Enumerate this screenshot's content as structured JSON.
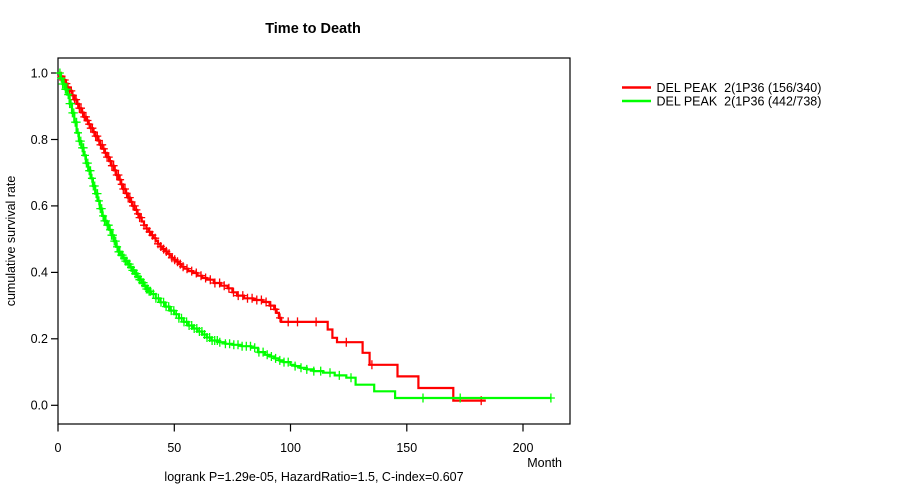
{
  "chart_data": {
    "type": "line",
    "subtype": "kaplan-meier-step-curves",
    "title": "Time to Death",
    "xlabel": "Month",
    "ylabel": "cumulative survival rate",
    "annotation": "logrank P=1.29e-05, HazardRatio=1.5, C-index=0.607",
    "background_color": "#FFFFFF",
    "axis_color": "#000000",
    "grid": false,
    "legend_position": "right-outside",
    "xlim": [
      0,
      220
    ],
    "ylim": [
      0.0,
      1.0
    ],
    "x_ticks": [
      0,
      50,
      100,
      150,
      200
    ],
    "y_tick_labels": [
      "0.0",
      "0.2",
      "0.4",
      "0.6",
      "0.8",
      "1.0"
    ],
    "series": [
      {
        "name": "DEL PEAK  2(1P36 (156/340)",
        "color": "#FF0000",
        "events": "156/340",
        "end": 184,
        "points": [
          [
            0,
            1
          ],
          [
            1,
            0.99
          ],
          [
            2,
            0.979
          ],
          [
            3,
            0.968
          ],
          [
            4,
            0.957
          ],
          [
            5,
            0.946
          ],
          [
            6,
            0.933
          ],
          [
            7,
            0.92
          ],
          [
            8,
            0.907
          ],
          [
            9,
            0.894
          ],
          [
            10,
            0.881
          ],
          [
            11,
            0.868
          ],
          [
            12,
            0.857
          ],
          [
            13,
            0.846
          ],
          [
            14,
            0.834
          ],
          [
            15,
            0.822
          ],
          [
            16,
            0.81
          ],
          [
            17,
            0.797
          ],
          [
            18,
            0.784
          ],
          [
            19,
            0.772
          ],
          [
            20,
            0.76
          ],
          [
            21,
            0.747
          ],
          [
            22,
            0.735
          ],
          [
            23,
            0.721
          ],
          [
            24,
            0.707
          ],
          [
            25,
            0.693
          ],
          [
            26,
            0.679
          ],
          [
            27,
            0.665
          ],
          [
            28,
            0.651
          ],
          [
            29,
            0.638
          ],
          [
            30,
            0.625
          ],
          [
            31,
            0.612
          ],
          [
            32,
            0.6
          ],
          [
            33,
            0.588
          ],
          [
            34,
            0.576
          ],
          [
            35,
            0.565
          ],
          [
            36,
            0.553
          ],
          [
            37,
            0.542
          ],
          [
            38,
            0.532
          ],
          [
            39,
            0.522
          ],
          [
            40,
            0.512
          ],
          [
            41,
            0.503
          ],
          [
            42,
            0.494
          ],
          [
            43,
            0.486
          ],
          [
            44,
            0.478
          ],
          [
            45,
            0.47
          ],
          [
            46,
            0.463
          ],
          [
            47,
            0.456
          ],
          [
            48,
            0.45
          ],
          [
            49,
            0.444
          ],
          [
            50,
            0.438
          ],
          [
            51,
            0.432
          ],
          [
            52,
            0.425
          ],
          [
            53,
            0.417
          ],
          [
            54,
            0.411
          ],
          [
            56,
            0.404
          ],
          [
            58,
            0.398
          ],
          [
            60,
            0.39
          ],
          [
            62,
            0.383
          ],
          [
            64,
            0.378
          ],
          [
            67,
            0.368
          ],
          [
            70,
            0.36
          ],
          [
            73,
            0.352
          ],
          [
            75,
            0.34
          ],
          [
            77,
            0.33
          ],
          [
            80,
            0.322
          ],
          [
            84,
            0.317
          ],
          [
            88,
            0.311
          ],
          [
            91,
            0.3
          ],
          [
            93,
            0.289
          ],
          [
            94,
            0.278
          ],
          [
            95,
            0.263
          ],
          [
            96,
            0.251
          ],
          [
            116,
            0.228
          ],
          [
            118,
            0.203
          ],
          [
            120,
            0.19
          ],
          [
            131,
            0.158
          ],
          [
            134,
            0.122
          ],
          [
            146,
            0.087
          ],
          [
            155,
            0.052
          ],
          [
            170,
            0.014
          ]
        ],
        "censors": {
          "ranges": [
            [
              1.5,
              36,
              0.7
            ],
            [
              37,
              54,
              1.2
            ],
            [
              55.5,
              95.5,
              2
            ]
          ],
          "times": [
            99,
            103,
            111,
            124,
            135,
            182
          ]
        }
      },
      {
        "name": "DEL PEAK  2(1P36 (442/738)",
        "color": "#00FF00",
        "events": "442/738",
        "end": 212,
        "points": [
          [
            0,
            1
          ],
          [
            1,
            0.984
          ],
          [
            2,
            0.967
          ],
          [
            3,
            0.951
          ],
          [
            4,
            0.935
          ],
          [
            5,
            0.908
          ],
          [
            6,
            0.88
          ],
          [
            7,
            0.852
          ],
          [
            8,
            0.82
          ],
          [
            9,
            0.795
          ],
          [
            10,
            0.775
          ],
          [
            11,
            0.752
          ],
          [
            12,
            0.729
          ],
          [
            13,
            0.706
          ],
          [
            14,
            0.683
          ],
          [
            15,
            0.66
          ],
          [
            16,
            0.637
          ],
          [
            17,
            0.615
          ],
          [
            18,
            0.592
          ],
          [
            19,
            0.57
          ],
          [
            20,
            0.555
          ],
          [
            21,
            0.542
          ],
          [
            22,
            0.528
          ],
          [
            23,
            0.512
          ],
          [
            24,
            0.494
          ],
          [
            25,
            0.477
          ],
          [
            26,
            0.462
          ],
          [
            27,
            0.452
          ],
          [
            28,
            0.443
          ],
          [
            29,
            0.434
          ],
          [
            30,
            0.425
          ],
          [
            31,
            0.415
          ],
          [
            32,
            0.406
          ],
          [
            33,
            0.396
          ],
          [
            34,
            0.387
          ],
          [
            35,
            0.378
          ],
          [
            36,
            0.369
          ],
          [
            37,
            0.36
          ],
          [
            38,
            0.35
          ],
          [
            39,
            0.343
          ],
          [
            40,
            0.335
          ],
          [
            42,
            0.322
          ],
          [
            44,
            0.31
          ],
          [
            46,
            0.297
          ],
          [
            48,
            0.285
          ],
          [
            50,
            0.274
          ],
          [
            52,
            0.262
          ],
          [
            54,
            0.251
          ],
          [
            56,
            0.24
          ],
          [
            58,
            0.231
          ],
          [
            60,
            0.222
          ],
          [
            62,
            0.213
          ],
          [
            64,
            0.204
          ],
          [
            66,
            0.195
          ],
          [
            69,
            0.19
          ],
          [
            72,
            0.185
          ],
          [
            75,
            0.182
          ],
          [
            79,
            0.178
          ],
          [
            83,
            0.173
          ],
          [
            86,
            0.16
          ],
          [
            89,
            0.152
          ],
          [
            91,
            0.147
          ],
          [
            93,
            0.141
          ],
          [
            95,
            0.135
          ],
          [
            97,
            0.13
          ],
          [
            100,
            0.122
          ],
          [
            102,
            0.118
          ],
          [
            104,
            0.113
          ],
          [
            107,
            0.108
          ],
          [
            110,
            0.103
          ],
          [
            114,
            0.098
          ],
          [
            119,
            0.09
          ],
          [
            124,
            0.083
          ],
          [
            128,
            0.062
          ],
          [
            136,
            0.042
          ],
          [
            145,
            0.022
          ]
        ],
        "censors": {
          "ranges": [
            [
              0.8,
              40,
              0.6
            ],
            [
              41,
              70,
              1.1
            ],
            [
              72,
              100,
              1.8
            ]
          ],
          "times": [
            102,
            104.5,
            107,
            110,
            113,
            117,
            121,
            126,
            157,
            173,
            212
          ]
        }
      }
    ]
  }
}
